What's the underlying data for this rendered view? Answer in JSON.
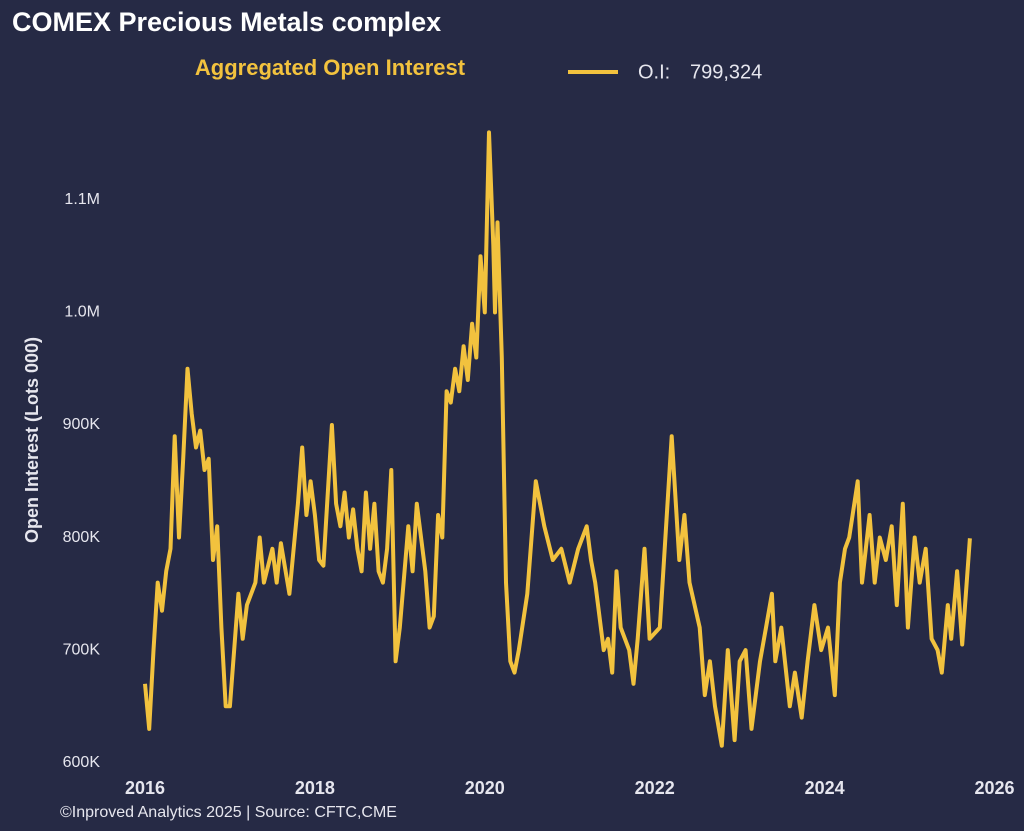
{
  "chart_data": {
    "type": "line",
    "title": "COMEX Precious Metals complex",
    "subtitle": "Aggregated Open Interest",
    "y_label": "Open Interest (Lots 000)",
    "footer": "©Inproved Analytics 2025 | Source: CFTC,CME",
    "x": [
      2016.0,
      2016.05,
      2016.1,
      2016.15,
      2016.2,
      2016.25,
      2016.3,
      2016.35,
      2016.4,
      2016.45,
      2016.5,
      2016.55,
      2016.6,
      2016.65,
      2016.7,
      2016.75,
      2016.8,
      2016.85,
      2016.9,
      2016.95,
      2017.0,
      2017.1,
      2017.15,
      2017.2,
      2017.3,
      2017.35,
      2017.4,
      2017.5,
      2017.55,
      2017.6,
      2017.7,
      2017.8,
      2017.85,
      2017.9,
      2017.95,
      2018.0,
      2018.05,
      2018.1,
      2018.2,
      2018.25,
      2018.3,
      2018.35,
      2018.4,
      2018.45,
      2018.5,
      2018.55,
      2018.6,
      2018.65,
      2018.7,
      2018.75,
      2018.8,
      2018.85,
      2018.9,
      2018.95,
      2019.0,
      2019.1,
      2019.15,
      2019.2,
      2019.3,
      2019.35,
      2019.4,
      2019.45,
      2019.5,
      2019.55,
      2019.6,
      2019.65,
      2019.7,
      2019.75,
      2019.8,
      2019.85,
      2019.9,
      2019.95,
      2020.0,
      2020.05,
      2020.1,
      2020.12,
      2020.15,
      2020.2,
      2020.25,
      2020.3,
      2020.35,
      2020.4,
      2020.5,
      2020.6,
      2020.7,
      2020.8,
      2020.9,
      2021.0,
      2021.1,
      2021.2,
      2021.25,
      2021.3,
      2021.4,
      2021.45,
      2021.5,
      2021.55,
      2021.6,
      2021.7,
      2021.75,
      2021.8,
      2021.88,
      2021.94,
      2022.06,
      2022.2,
      2022.29,
      2022.35,
      2022.41,
      2022.53,
      2022.59,
      2022.65,
      2022.71,
      2022.79,
      2022.86,
      2022.94,
      2023.0,
      2023.07,
      2023.14,
      2023.24,
      2023.31,
      2023.38,
      2023.42,
      2023.49,
      2023.59,
      2023.65,
      2023.73,
      2023.8,
      2023.88,
      2023.96,
      2024.04,
      2024.12,
      2024.18,
      2024.24,
      2024.29,
      2024.39,
      2024.44,
      2024.53,
      2024.59,
      2024.65,
      2024.72,
      2024.79,
      2024.85,
      2024.92,
      2024.98,
      2025.06,
      2025.12,
      2025.19,
      2025.26,
      2025.33,
      2025.38,
      2025.45,
      2025.49,
      2025.56,
      2025.62,
      2025.71
    ],
    "series": [
      {
        "name": "O.I:",
        "color": "#f2c23e",
        "values": [
          670000,
          630000,
          700000,
          760000,
          735000,
          770000,
          790000,
          890000,
          800000,
          870000,
          950000,
          910000,
          880000,
          895000,
          860000,
          870000,
          780000,
          810000,
          720000,
          650000,
          650000,
          750000,
          710000,
          740000,
          760000,
          800000,
          760000,
          790000,
          760000,
          795000,
          750000,
          830000,
          880000,
          820000,
          850000,
          820000,
          780000,
          775000,
          900000,
          830000,
          810000,
          840000,
          800000,
          825000,
          790000,
          770000,
          840000,
          790000,
          830000,
          770000,
          760000,
          790000,
          860000,
          690000,
          720000,
          810000,
          770000,
          830000,
          770000,
          720000,
          730000,
          820000,
          800000,
          930000,
          920000,
          950000,
          930000,
          970000,
          940000,
          990000,
          960000,
          1050000,
          1000000,
          1160000,
          1060000,
          1000000,
          1080000,
          960000,
          760000,
          690000,
          680000,
          700000,
          750000,
          850000,
          810000,
          780000,
          790000,
          760000,
          790000,
          810000,
          780000,
          760000,
          700000,
          710000,
          680000,
          770000,
          720000,
          700000,
          670000,
          710000,
          790000,
          710000,
          720000,
          890000,
          780000,
          820000,
          760000,
          720000,
          660000,
          690000,
          650000,
          615000,
          700000,
          620000,
          690000,
          700000,
          630000,
          690000,
          720000,
          750000,
          690000,
          720000,
          650000,
          680000,
          640000,
          690000,
          740000,
          700000,
          720000,
          660000,
          760000,
          790000,
          800000,
          850000,
          760000,
          820000,
          760000,
          800000,
          780000,
          810000,
          740000,
          830000,
          720000,
          800000,
          760000,
          790000,
          710000,
          700000,
          680000,
          740000,
          710000,
          770000,
          705000,
          799324
        ],
        "legend_value_label": "799,324"
      }
    ],
    "xlim": [
      2015.8,
      2026.1
    ],
    "ylim": [
      589000,
      1171000
    ],
    "xticks": [
      2016,
      2018,
      2020,
      2022,
      2024,
      2026
    ],
    "yticks": [
      {
        "value": 600000,
        "label": "600K"
      },
      {
        "value": 700000,
        "label": "700K"
      },
      {
        "value": 800000,
        "label": "800K"
      },
      {
        "value": 900000,
        "label": "900K"
      },
      {
        "value": 1000000,
        "label": "1.0M"
      },
      {
        "value": 1100000,
        "label": "1.1M"
      }
    ],
    "grid": false
  }
}
